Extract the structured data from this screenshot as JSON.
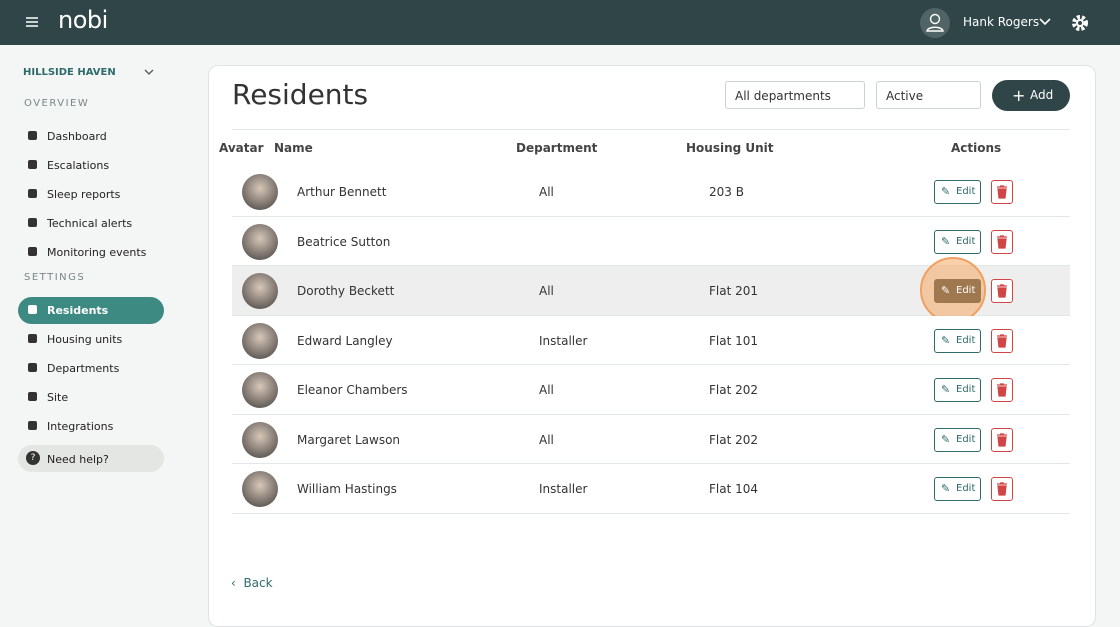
{
  "header": {
    "logo": "nobi",
    "user": "Hank Rogers"
  },
  "sidebar": {
    "site": "HILLSIDE HAVEN",
    "sections": [
      {
        "title": "OVERVIEW",
        "items": [
          "Dashboard",
          "Escalations",
          "Sleep reports",
          "Technical alerts",
          "Monitoring events"
        ]
      },
      {
        "title": "SETTINGS",
        "items": [
          "Residents",
          "Housing units",
          "Departments",
          "Site",
          "Integrations"
        ]
      }
    ],
    "help": "Need help?"
  },
  "main": {
    "title": "Residents",
    "filters": [
      "All departments",
      "Active"
    ],
    "add": "Add",
    "table": {
      "columns": [
        "Avatar",
        "Name",
        "Department",
        "Housing Unit",
        "Actions"
      ],
      "rows": [
        {
          "name": "Arthur Bennett",
          "department": "All",
          "unit": "203 B"
        },
        {
          "name": "Beatrice Sutton"
        },
        {
          "name": "Dorothy Beckett",
          "department": "All",
          "unit": "Flat 201"
        },
        {
          "name": "Edward Langley",
          "department": "Installer",
          "unit": "Flat 101"
        },
        {
          "name": "Eleanor Chambers",
          "department": "All",
          "unit": "Flat 202"
        },
        {
          "name": "Margaret Lawson",
          "department": "All",
          "unit": "Flat 202"
        },
        {
          "name": "William Hastings",
          "department": "Installer",
          "unit": "Flat 104"
        }
      ]
    },
    "edit": "Edit",
    "back": "Back"
  }
}
